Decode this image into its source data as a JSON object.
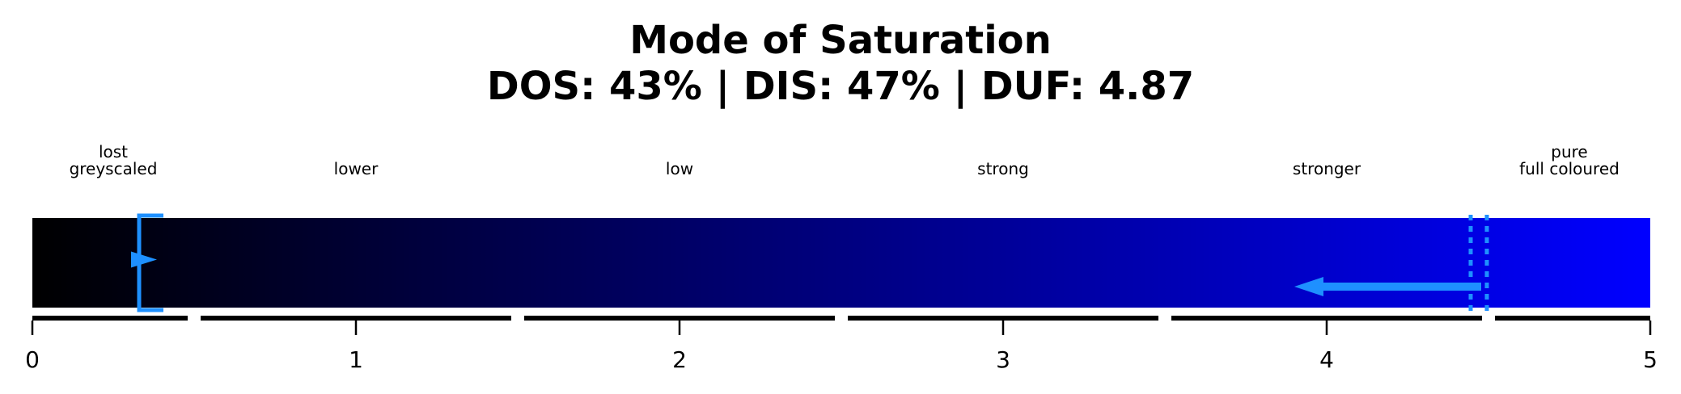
{
  "title": "Mode of Saturation",
  "subtitle": "DOS: 43% | DIS: 47% | DUF: 4.87",
  "chart_data": {
    "type": "color-scale gauge",
    "xlim": [
      0,
      5
    ],
    "ticks": [
      0,
      1,
      2,
      3,
      4,
      5
    ],
    "gradient_colors": [
      "#000000",
      "#0000ff"
    ],
    "marker_color": "#1e90ff",
    "categories": [
      {
        "label": [
          "lost",
          "greyscaled"
        ],
        "range": [
          0,
          0.5
        ]
      },
      {
        "label": [
          "lower"
        ],
        "range": [
          0.5,
          1.5
        ]
      },
      {
        "label": [
          "low"
        ],
        "range": [
          1.5,
          2.5
        ]
      },
      {
        "label": [
          "strong"
        ],
        "range": [
          2.5,
          3.5
        ]
      },
      {
        "label": [
          "stronger"
        ],
        "range": [
          3.5,
          4.5
        ]
      },
      {
        "label": [
          "pure",
          "full coloured"
        ],
        "range": [
          4.5,
          5
        ]
      }
    ],
    "bracket_at": 0.33,
    "dotted_line_at": 4.47,
    "arrow_from": 4.47,
    "arrow_to": 3.9
  }
}
